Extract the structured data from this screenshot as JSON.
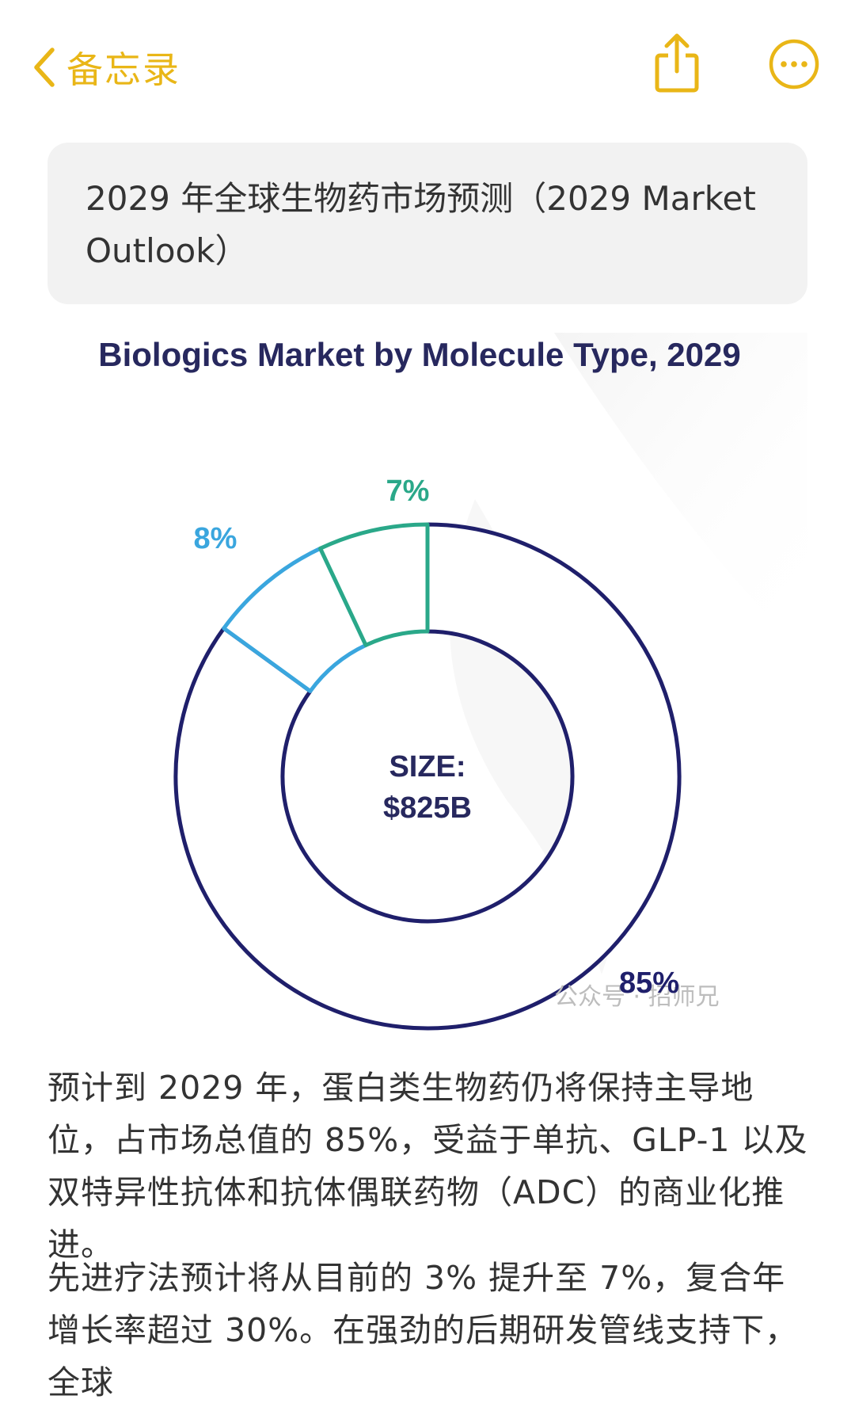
{
  "nav": {
    "back_label": "备忘录",
    "back_icon": "chevron-left-icon",
    "share_icon": "share-icon",
    "more_icon": "more-icon",
    "accent_color": "#E9B617"
  },
  "note": {
    "title": "2029 年全球生物药市场预测（2029 Market Outlook）"
  },
  "chart_data": {
    "type": "pie",
    "title": "Biologics Market by Molecule Type, 2029",
    "center_label_line1": "SIZE:",
    "center_label_line2": "$825B",
    "slices": [
      {
        "label": "85%",
        "value": 85,
        "color": "#1F1F6B"
      },
      {
        "label": "8%",
        "value": 8,
        "color": "#3AA6DE"
      },
      {
        "label": "7%",
        "value": 7,
        "color": "#2AA889"
      }
    ],
    "watermark": "公众号 · 招师兄"
  },
  "paragraphs": {
    "p1": "预计到 2029 年，蛋白类生物药仍将保持主导地位，占市场总值的 85%，受益于单抗、GLP-1 以及双特异性抗体和抗体偶联药物（ADC）的商业化推进。",
    "p2": "先进疗法预计将从目前的 3% 提升至 7%，复合年增长率超过 30%。在强劲的后期研发管线支持下，全球"
  }
}
